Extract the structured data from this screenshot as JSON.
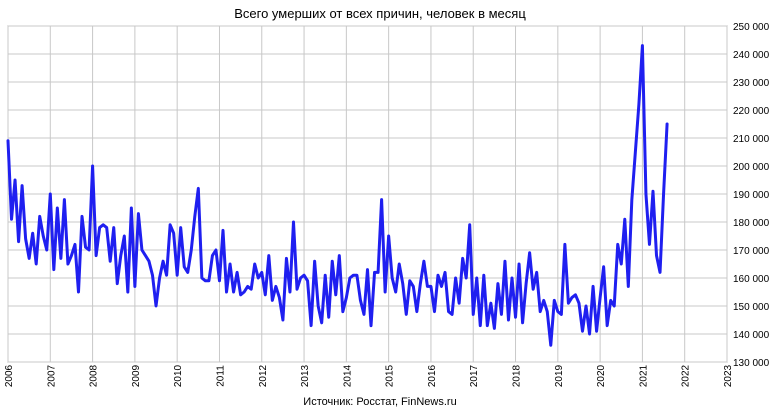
{
  "chart_data": {
    "type": "line",
    "title": "Всего умерших от всех причин, человек в месяц",
    "source": "Источник: Росстат, FinNews.ru",
    "xlabel": "",
    "ylabel": "",
    "xlim": [
      2006,
      2023
    ],
    "ylim": [
      130000,
      250000
    ],
    "grid": true,
    "x_ticks": [
      "2006",
      "2007",
      "2008",
      "2009",
      "2010",
      "2011",
      "2012",
      "2013",
      "2014",
      "2015",
      "2016",
      "2017",
      "2018",
      "2019",
      "2020",
      "2021",
      "2022",
      "2023"
    ],
    "y_ticks": [
      "130 000",
      "140 000",
      "150 000",
      "160 000",
      "170 000",
      "180 000",
      "190 000",
      "200 000",
      "210 000",
      "220 000",
      "230 000",
      "240 000",
      "250 000"
    ],
    "line_color": "#1f1ff0",
    "series": [
      {
        "name": "",
        "start": "2006-01",
        "values": [
          209000,
          181000,
          195000,
          173000,
          193000,
          174000,
          167000,
          176000,
          165000,
          182000,
          175000,
          170000,
          190000,
          163000,
          185000,
          167000,
          188000,
          165000,
          168000,
          172000,
          155000,
          182000,
          171000,
          170000,
          200000,
          168000,
          178000,
          179000,
          178000,
          166000,
          178000,
          158000,
          168000,
          175000,
          155000,
          185000,
          157000,
          183000,
          170000,
          168000,
          166000,
          161000,
          150000,
          160000,
          166000,
          161000,
          179000,
          176000,
          161000,
          178000,
          164000,
          162000,
          170000,
          182000,
          192000,
          160000,
          159000,
          159000,
          168000,
          170000,
          159000,
          177000,
          155000,
          165000,
          155000,
          162000,
          154000,
          155000,
          157000,
          156000,
          165000,
          160000,
          162000,
          154000,
          168000,
          152000,
          157000,
          153000,
          145000,
          167000,
          155000,
          180000,
          156000,
          160000,
          161000,
          159000,
          143000,
          166000,
          150000,
          144000,
          161000,
          146000,
          166000,
          154000,
          168000,
          148000,
          153000,
          160000,
          161000,
          161000,
          152000,
          147000,
          163000,
          143000,
          162000,
          162000,
          188000,
          155000,
          175000,
          160000,
          155000,
          165000,
          158000,
          147000,
          159000,
          157000,
          148000,
          158000,
          166000,
          157000,
          157000,
          148000,
          161000,
          157000,
          162000,
          148000,
          147000,
          160000,
          151000,
          167000,
          160000,
          179000,
          147000,
          160000,
          143000,
          161000,
          143000,
          151000,
          142000,
          158000,
          147000,
          166000,
          145000,
          160000,
          146000,
          165000,
          144000,
          158000,
          169000,
          156000,
          162000,
          148000,
          152000,
          148000,
          136000,
          152000,
          148000,
          147000,
          172000,
          151000,
          153000,
          154000,
          151000,
          141000,
          150000,
          140000,
          157000,
          141000,
          153000,
          164000,
          143000,
          152000,
          150000,
          172000,
          165000,
          181000,
          157000,
          188000,
          205000,
          222000,
          243000,
          190000,
          172000,
          191000,
          168000,
          162000,
          190000,
          215000
        ]
      }
    ]
  }
}
